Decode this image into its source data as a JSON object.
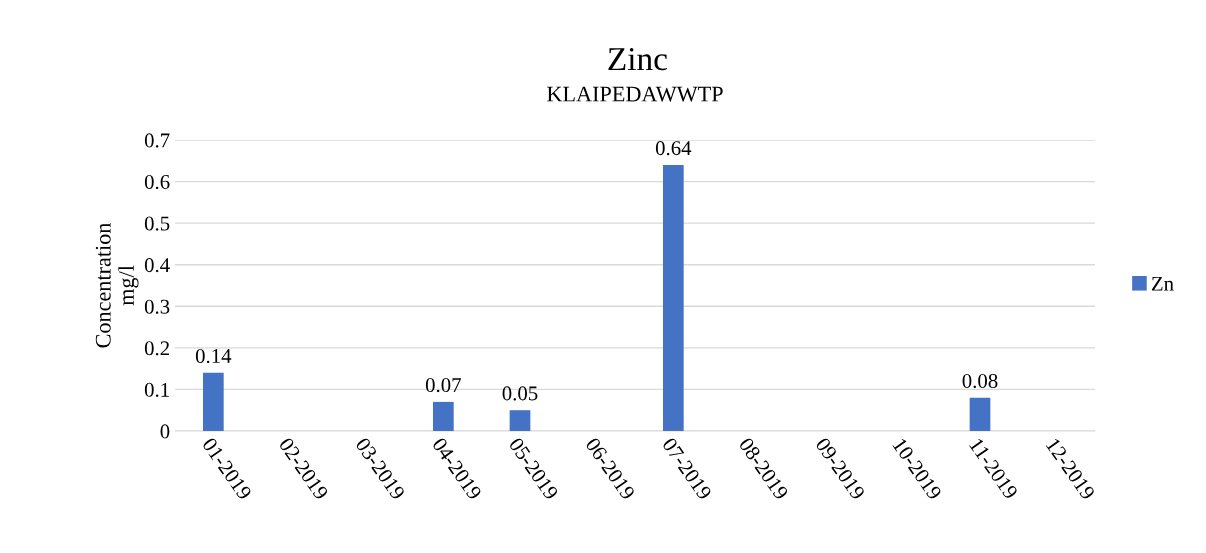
{
  "chart_data": {
    "type": "bar",
    "title": "Zinc",
    "subtitle": "KLAIPEDAWWTP",
    "ylabel": "Concentration\nmg/l",
    "categories": [
      "01-2019",
      "02-2019",
      "03-2019",
      "04-2019",
      "05-2019",
      "06-2019",
      "07-2019",
      "08-2019",
      "09-2019",
      "10-2019",
      "11-2019",
      "12-2019"
    ],
    "series": [
      {
        "name": "Zn",
        "color": "#4472c4",
        "values": [
          0.14,
          null,
          null,
          0.07,
          0.05,
          null,
          0.64,
          null,
          null,
          null,
          0.08,
          null
        ]
      }
    ],
    "ylim": [
      0,
      0.7
    ],
    "yticks": [
      0,
      0.1,
      0.2,
      0.3,
      0.4,
      0.5,
      0.6,
      0.7
    ],
    "grid": "y",
    "legend": "right",
    "data_labels": true
  }
}
